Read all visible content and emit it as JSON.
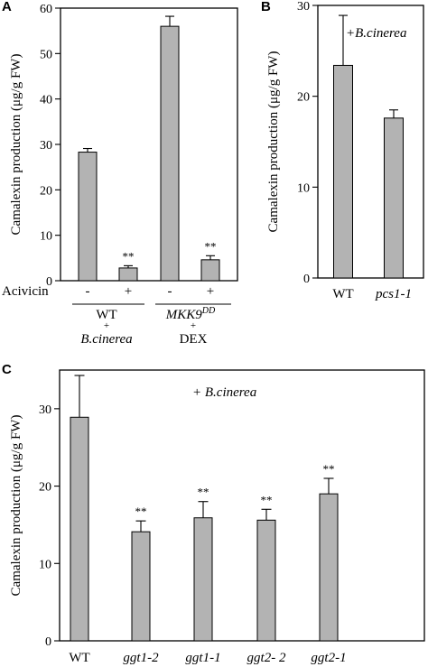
{
  "chart_data": [
    {
      "panel": "A",
      "type": "bar",
      "ylabel": "Camalexin production (μg/g FW)",
      "ylim": [
        0,
        60
      ],
      "yticks": [
        0,
        10,
        20,
        30,
        40,
        50,
        60
      ],
      "row_label": "Acivicin",
      "categories": [
        "-",
        "+",
        "-",
        "+"
      ],
      "values": [
        28.3,
        2.8,
        56.0,
        4.6
      ],
      "errors": [
        0.8,
        0.5,
        2.2,
        0.9
      ],
      "annotations": [
        "",
        "**",
        "",
        "**"
      ],
      "groups": [
        {
          "line1": "WT",
          "line2": "B.cinerea"
        },
        {
          "line1": "MKK9",
          "sup": "DD",
          "line2": "DEX"
        }
      ],
      "plus_sign": "+"
    },
    {
      "panel": "B",
      "type": "bar",
      "title": "+B.cinerea",
      "ylabel": "Camalexin production (μg/g FW)",
      "ylim": [
        0,
        30
      ],
      "yticks": [
        0,
        10,
        20,
        30
      ],
      "categories": [
        "WT",
        "pcs1-1"
      ],
      "values": [
        23.4,
        17.6
      ],
      "errors": [
        5.5,
        0.9
      ],
      "annotations": [
        "",
        ""
      ]
    },
    {
      "panel": "C",
      "type": "bar",
      "title": "+ B.cinerea",
      "ylabel": "Camalexin production (μg/g FW)",
      "ylim": [
        0,
        35
      ],
      "yticks": [
        0,
        10,
        20,
        30
      ],
      "categories": [
        "WT",
        "ggt1-2",
        "ggt1-1",
        "ggt2- 2",
        "ggt2-1"
      ],
      "values": [
        28.9,
        14.1,
        15.9,
        15.6,
        19.0
      ],
      "errors": [
        5.4,
        1.4,
        2.1,
        1.4,
        2.0
      ],
      "annotations": [
        "",
        "**",
        "**",
        "**",
        "**"
      ]
    }
  ],
  "style": {
    "bar_fill": "#b3b3b3",
    "bar_stroke": "#000000"
  }
}
